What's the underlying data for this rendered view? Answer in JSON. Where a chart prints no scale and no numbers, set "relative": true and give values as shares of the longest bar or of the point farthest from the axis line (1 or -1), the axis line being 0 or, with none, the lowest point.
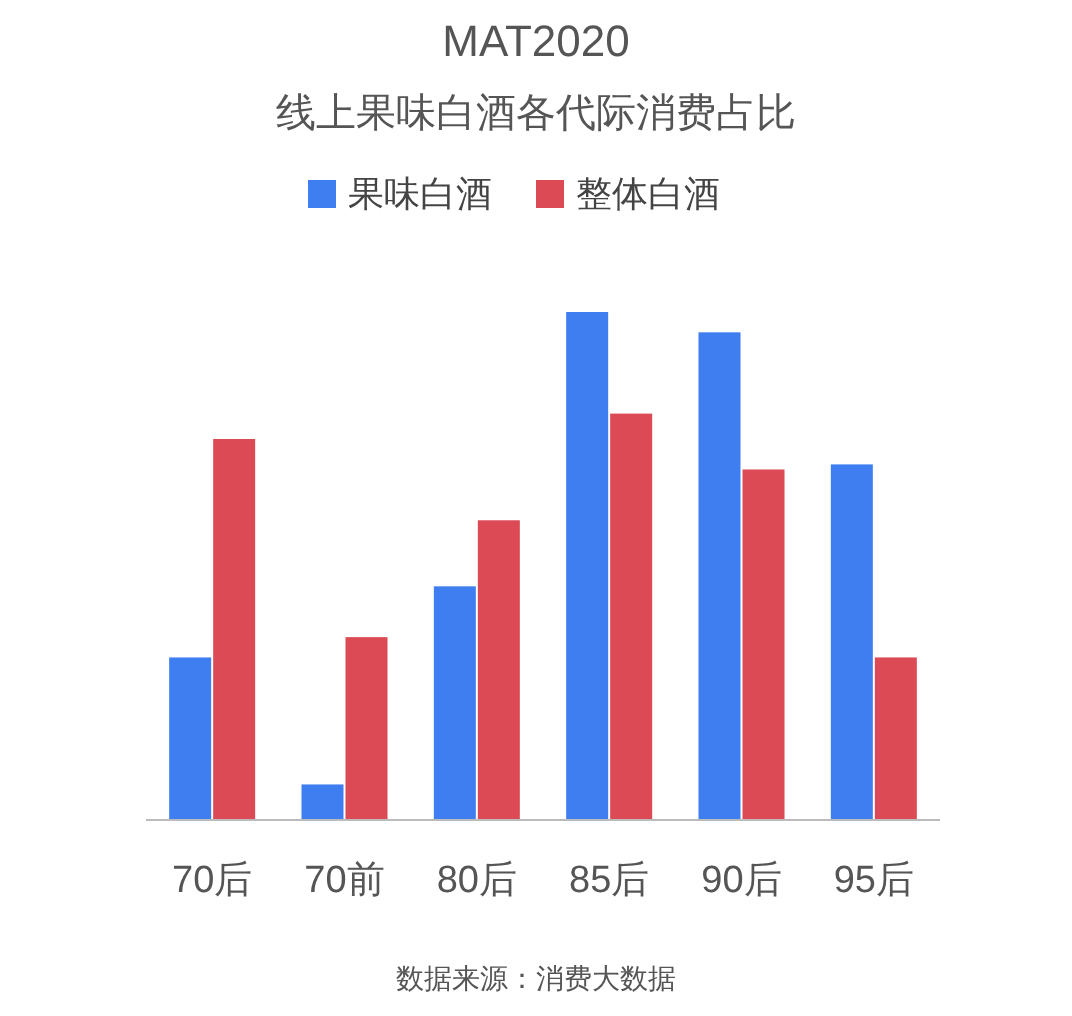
{
  "chart_data": {
    "type": "bar",
    "title": "MAT2020",
    "subtitle": "线上果味白酒各代际消费占比",
    "categories": [
      "70后",
      "70前",
      "80后",
      "85后",
      "90后",
      "95后"
    ],
    "relative": true,
    "legend": "top",
    "series": [
      {
        "name": "果味白酒",
        "color": "#3f7ef0",
        "values": [
          0.32,
          0.07,
          0.46,
          1,
          0.96,
          0.7
        ]
      },
      {
        "name": "整体白酒",
        "color": "#dc4a55",
        "values": [
          0.75,
          0.36,
          0.59,
          0.8,
          0.69,
          0.32
        ]
      }
    ],
    "annotations": [
      "数据来源：消费大数据"
    ]
  }
}
